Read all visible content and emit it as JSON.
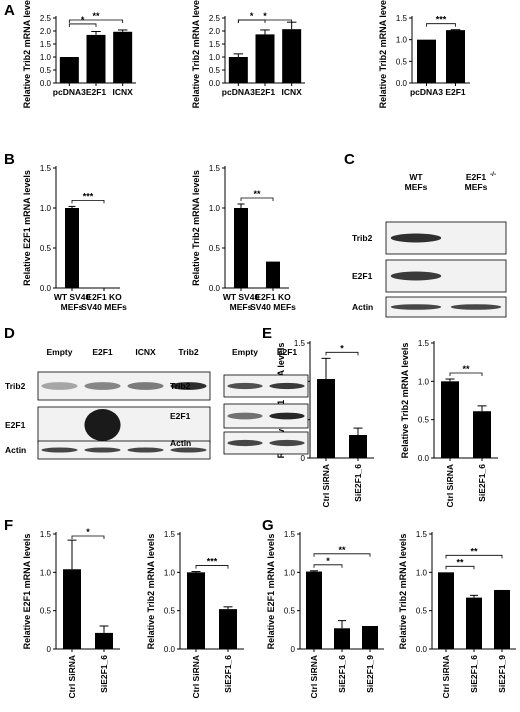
{
  "panels": {
    "A": "A",
    "B": "B",
    "C": "C",
    "D": "D",
    "E": "E",
    "F": "F",
    "G": "G"
  },
  "chart_data": [
    {
      "id": "A1",
      "panel": "A",
      "type": "bar",
      "ylabel": "Relative Trib2 mRNA levels",
      "categories": [
        "pcDNA3",
        "E2F1",
        "ICNX"
      ],
      "values": [
        1.0,
        1.85,
        1.97
      ],
      "errors": [
        0.0,
        0.13,
        0.07
      ],
      "ylim": [
        0,
        2.5
      ],
      "yticks": [
        "0.0",
        "0.5",
        "1.0",
        "1.5",
        "2.0",
        "2.5"
      ],
      "rotate_labels": false,
      "significance": [
        {
          "a": 0,
          "b": 1,
          "label": "*"
        },
        {
          "a": 0,
          "b": 2,
          "label": "**"
        }
      ]
    },
    {
      "id": "A2",
      "panel": "A",
      "type": "bar",
      "ylabel": "Relative Trib2 mRNA levels",
      "categories": [
        "pcDNA3",
        "E2F1",
        "ICNX"
      ],
      "values": [
        1.0,
        1.87,
        2.07
      ],
      "errors": [
        0.12,
        0.17,
        0.27
      ],
      "ylim": [
        0,
        2.5
      ],
      "yticks": [
        "0.0",
        "0.5",
        "1.0",
        "1.5",
        "2.0",
        "2.5"
      ],
      "rotate_labels": false,
      "significance": [
        {
          "a": 0,
          "b": 1,
          "label": "*"
        },
        {
          "a": 0,
          "b": 2,
          "label": "*"
        }
      ]
    },
    {
      "id": "A3",
      "panel": "A",
      "type": "bar",
      "ylabel": "Relative Trib2 mRNA levels",
      "categories": [
        "pcDNA3",
        "E2F1"
      ],
      "values": [
        1.0,
        1.22
      ],
      "errors": [
        0.0,
        0.01
      ],
      "ylim": [
        0,
        1.5
      ],
      "yticks": [
        "0.0",
        "0.5",
        "1.0",
        "1.5"
      ],
      "rotate_labels": false,
      "significance": [
        {
          "a": 0,
          "b": 1,
          "label": "***"
        }
      ]
    },
    {
      "id": "B1",
      "panel": "B",
      "type": "bar",
      "ylabel": "Relative E2F1 mRNA levels",
      "categories": [
        [
          "WT SV40",
          "MEFs"
        ],
        [
          "E2F1 KO",
          "SV40 MEFs"
        ]
      ],
      "values": [
        1.0,
        0.0
      ],
      "errors": [
        0.02,
        0.0
      ],
      "ylim": [
        0,
        1.5
      ],
      "yticks": [
        "0.0",
        "0.5",
        "1.0",
        "1.5"
      ],
      "rotate_labels": false,
      "significance": [
        {
          "a": 0,
          "b": 1,
          "label": "***"
        }
      ]
    },
    {
      "id": "B2",
      "panel": "B",
      "type": "bar",
      "ylabel": "Relative Trib2 mRNA levels",
      "categories": [
        [
          "WT SV40",
          "MEFs"
        ],
        [
          "E2F1 KO",
          "SV40 MEFs"
        ]
      ],
      "values": [
        1.0,
        0.33
      ],
      "errors": [
        0.05,
        0.0
      ],
      "ylim": [
        0,
        1.5
      ],
      "yticks": [
        "0.0",
        "0.5",
        "1.0",
        "1.5"
      ],
      "rotate_labels": false,
      "significance": [
        {
          "a": 0,
          "b": 1,
          "label": "**"
        }
      ]
    },
    {
      "id": "E1",
      "panel": "E",
      "type": "bar",
      "ylabel": "Relative E2F1 mRNA levels",
      "categories": [
        "Ctrl SiRNA",
        "SiE2F1_6"
      ],
      "values": [
        1.03,
        0.3
      ],
      "errors": [
        0.27,
        0.09
      ],
      "ylim": [
        0,
        1.5
      ],
      "yticks": [
        "0",
        "0.5",
        "1.0",
        "1.5"
      ],
      "rotate_labels": true,
      "significance": [
        {
          "a": 0,
          "b": 1,
          "label": "*"
        }
      ]
    },
    {
      "id": "E2",
      "panel": "E",
      "type": "bar",
      "ylabel": "Relative Trib2 mRNA levels",
      "categories": [
        "Ctrl SiRNA",
        "SiE2F1_6"
      ],
      "values": [
        1.0,
        0.61
      ],
      "errors": [
        0.03,
        0.07
      ],
      "ylim": [
        0,
        1.5
      ],
      "yticks": [
        "0.0",
        "0.5",
        "1.0",
        "1.5"
      ],
      "rotate_labels": true,
      "significance": [
        {
          "a": 0,
          "b": 1,
          "label": "**"
        }
      ]
    },
    {
      "id": "F1",
      "panel": "F",
      "type": "bar",
      "ylabel": "Relative E2F1 mRNA levels",
      "categories": [
        "Ctrl SiRNA",
        "SiE2F1_6"
      ],
      "values": [
        1.04,
        0.21
      ],
      "errors": [
        0.38,
        0.09
      ],
      "ylim": [
        0,
        1.5
      ],
      "yticks": [
        "0",
        "0.5",
        "1.0",
        "1.5"
      ],
      "rotate_labels": true,
      "significance": [
        {
          "a": 0,
          "b": 1,
          "label": "*"
        }
      ]
    },
    {
      "id": "F2",
      "panel": "F",
      "type": "bar",
      "ylabel": "Relative Trib2 mRNA levels",
      "categories": [
        "Ctrl SiRNA",
        "SiE2F1_6"
      ],
      "values": [
        1.0,
        0.52
      ],
      "errors": [
        0.01,
        0.03
      ],
      "ylim": [
        0,
        1.5
      ],
      "yticks": [
        "0.0",
        "0.5",
        "1.0",
        "1.5"
      ],
      "rotate_labels": true,
      "significance": [
        {
          "a": 0,
          "b": 1,
          "label": "***"
        }
      ]
    },
    {
      "id": "G1",
      "panel": "G",
      "type": "bar",
      "ylabel": "Relative E2F1 mRNA levels",
      "categories": [
        "Ctrl SiRNA",
        "SiE2F1_6",
        "SiE2F1_9"
      ],
      "values": [
        1.01,
        0.27,
        0.3
      ],
      "errors": [
        0.01,
        0.1,
        0.0
      ],
      "ylim": [
        0,
        1.5
      ],
      "yticks": [
        "0",
        "0.5",
        "1.0",
        "1.5"
      ],
      "rotate_labels": true,
      "significance": [
        {
          "a": 0,
          "b": 1,
          "label": "*"
        },
        {
          "a": 0,
          "b": 2,
          "label": "**"
        }
      ]
    },
    {
      "id": "G2",
      "panel": "G",
      "type": "bar",
      "ylabel": "Relative Trib2 mRNA levels",
      "categories": [
        "Ctrl SiRNA",
        "SiE2F1_6",
        "SiE2F1_9"
      ],
      "values": [
        1.0,
        0.67,
        0.77
      ],
      "errors": [
        0.0,
        0.03,
        0.0
      ],
      "ylim": [
        0,
        1.5
      ],
      "yticks": [
        "0.0",
        "0.5",
        "1.0",
        "1.5"
      ],
      "rotate_labels": true,
      "significance": [
        {
          "a": 0,
          "b": 1,
          "label": "**"
        },
        {
          "a": 0,
          "b": 2,
          "label": "**"
        }
      ]
    }
  ],
  "blots": [
    {
      "id": "C",
      "panel": "C",
      "columns": [
        {
          "line1": "WT",
          "line2": "MEFs"
        },
        {
          "line1": "E2F1",
          "sup": "-/-",
          "line2": "MEFs"
        }
      ],
      "rows": [
        {
          "label": "Trib2",
          "bands": [
            0.9,
            0.0
          ]
        },
        {
          "label": "E2F1",
          "bands": [
            0.85,
            0.0
          ]
        },
        {
          "label": "Actin",
          "bands": [
            0.8,
            0.8
          ]
        }
      ]
    },
    {
      "id": "D1",
      "panel": "D",
      "columns": [
        {
          "line1": "Empty"
        },
        {
          "line1": "E2F1"
        },
        {
          "line1": "ICNX"
        },
        {
          "line1": "Trib2"
        }
      ],
      "rows": [
        {
          "label": "Trib2",
          "bands": [
            0.35,
            0.5,
            0.55,
            0.9
          ]
        },
        {
          "label": "E2F1",
          "bands": [
            0.0,
            1.0,
            0.0,
            0.0
          ]
        },
        {
          "label": "Actin",
          "bands": [
            0.8,
            0.8,
            0.8,
            0.8
          ]
        }
      ]
    },
    {
      "id": "D2",
      "panel": "D",
      "columns": [
        {
          "line1": "Empty"
        },
        {
          "line1": "E2F1"
        }
      ],
      "rows": [
        {
          "label": "Trib2",
          "bands": [
            0.75,
            0.85
          ]
        },
        {
          "label": "E2F1",
          "bands": [
            0.6,
            0.95
          ]
        },
        {
          "label": "Actin",
          "bands": [
            0.8,
            0.8
          ]
        }
      ]
    }
  ],
  "colors": {
    "bar": "#000000",
    "axis": "#000000",
    "blot_bg": "#f2f2f2",
    "band": "#1a1a1a"
  }
}
